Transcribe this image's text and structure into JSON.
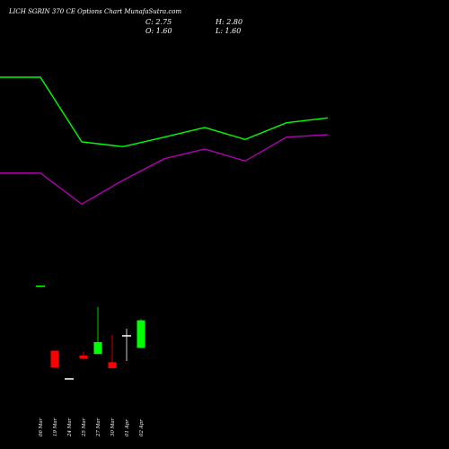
{
  "chart_data": {
    "type": "candlestick",
    "title": "LICH         SGRIN 370 CE Options Chart MunafaSutra.com",
    "ohlc_labels": {
      "close": "C: 2.75",
      "high": "H: 2.80",
      "open": "O: 1.60",
      "low": "L: 1.60"
    },
    "dates": [
      "06 Mar",
      "19 Mar",
      "24 Mar",
      "25 Mar",
      "27 Mar",
      "30 Mar",
      "01 Apr",
      "02 Apr"
    ],
    "candles": [
      {
        "open": 4.2,
        "high": 4.2,
        "low": 4.2,
        "close": 4.2,
        "color": "#00ff00"
      },
      {
        "open": 1.48,
        "high": 1.48,
        "low": 0.78,
        "close": 0.78,
        "color": "#ff0000"
      },
      {
        "open": 0.33,
        "high": 0.33,
        "low": 0.33,
        "close": 0.33,
        "color": "#ffffff"
      },
      {
        "open": 1.28,
        "high": 1.44,
        "low": 1.1,
        "close": 1.15,
        "color": "#ff0000"
      },
      {
        "open": 1.34,
        "high": 3.3,
        "low": 1.34,
        "close": 1.84,
        "color": "#00ff00"
      },
      {
        "open": 1.0,
        "high": 2.15,
        "low": 0.75,
        "close": 0.75,
        "color": "#ff0000"
      },
      {
        "open": 2.13,
        "high": 2.4,
        "low": 1.05,
        "close": 2.13,
        "color": "#ffffff"
      },
      {
        "open": 1.6,
        "high": 2.8,
        "low": 1.6,
        "close": 2.75,
        "color": "#00ff00"
      }
    ],
    "overlay_series": [
      {
        "color": "#00ff00",
        "values": [
          12.9,
          12.9,
          10.2,
          10.0,
          10.4,
          10.8,
          10.3,
          11.0,
          11.2
        ]
      },
      {
        "color": "#b000b0",
        "values": [
          8.9,
          8.9,
          7.6,
          8.6,
          9.5,
          9.9,
          9.4,
          10.4,
          10.5
        ]
      }
    ],
    "ylim": [
      0,
      15
    ],
    "grid": false,
    "legend": "none",
    "colors": {
      "background": "#000000",
      "up": "#00ff00",
      "down": "#ff0000",
      "doji": "#ffffff",
      "text": "#ffffff"
    }
  }
}
